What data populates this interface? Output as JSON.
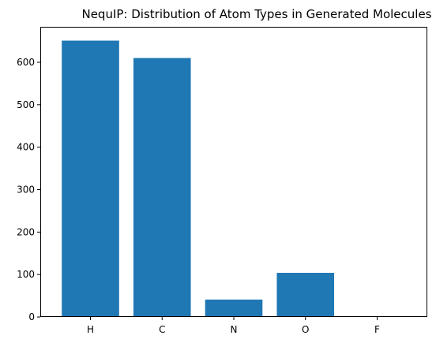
{
  "chart_data": {
    "type": "bar",
    "title": "NequIP: Distribution of Atom Types in Generated Molecules",
    "xlabel": "",
    "ylabel": "",
    "categories": [
      "H",
      "C",
      "N",
      "O",
      "F"
    ],
    "values": [
      651,
      610,
      41,
      104,
      0
    ],
    "ylim": [
      0,
      683.55
    ],
    "yticks": [
      0,
      100,
      200,
      300,
      400,
      500,
      600
    ],
    "grid": false,
    "colors": {
      "bar": "#1f77b4",
      "axis": "#000000"
    }
  }
}
